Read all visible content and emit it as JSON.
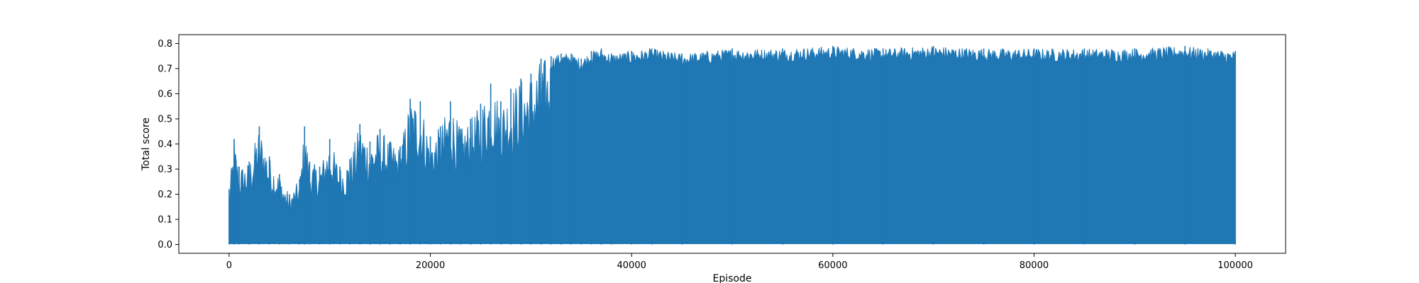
{
  "chart_data": {
    "type": "line",
    "title": "",
    "xlabel": "Episode",
    "ylabel": "Total score",
    "xlim": [
      -5000,
      105000
    ],
    "ylim": [
      -0.035,
      0.835
    ],
    "xticks": [
      0,
      20000,
      40000,
      60000,
      80000,
      100000
    ],
    "xtick_labels": [
      "0",
      "20000",
      "40000",
      "60000",
      "80000",
      "100000"
    ],
    "yticks": [
      0.0,
      0.1,
      0.2,
      0.3,
      0.4,
      0.5,
      0.6,
      0.7,
      0.8
    ],
    "ytick_labels": [
      "0.0",
      "0.1",
      "0.2",
      "0.3",
      "0.4",
      "0.5",
      "0.6",
      "0.7",
      "0.8"
    ],
    "grid": false,
    "legend": null,
    "series": [
      {
        "color": "#1f77b4",
        "description_min": "near 0.0 throughout",
        "x": [
          0,
          500,
          1000,
          2000,
          3000,
          4000,
          5000,
          6000,
          7000,
          7500,
          8000,
          9000,
          10000,
          11000,
          12000,
          13000,
          14000,
          15000,
          16000,
          17000,
          18000,
          19000,
          20000,
          21000,
          22000,
          23000,
          24000,
          25000,
          26000,
          27000,
          28000,
          29000,
          30000,
          31000,
          32000,
          33000,
          34000,
          35000,
          36000,
          37000,
          38000,
          40000,
          42000,
          45000,
          50000,
          55000,
          60000,
          65000,
          70000,
          75000,
          80000,
          85000,
          90000,
          95000,
          100000
        ],
        "upper": [
          0.22,
          0.42,
          0.31,
          0.33,
          0.47,
          0.35,
          0.28,
          0.2,
          0.26,
          0.47,
          0.33,
          0.31,
          0.42,
          0.31,
          0.34,
          0.48,
          0.41,
          0.46,
          0.41,
          0.39,
          0.58,
          0.57,
          0.43,
          0.47,
          0.57,
          0.46,
          0.5,
          0.56,
          0.64,
          0.57,
          0.62,
          0.66,
          0.68,
          0.74,
          0.75,
          0.76,
          0.76,
          0.74,
          0.77,
          0.78,
          0.76,
          0.77,
          0.78,
          0.76,
          0.78,
          0.78,
          0.79,
          0.78,
          0.79,
          0.78,
          0.78,
          0.78,
          0.78,
          0.79,
          0.77
        ],
        "lower": [
          0.0,
          0.0,
          0.0,
          0.0,
          0.0,
          0.0,
          0.0,
          0.0,
          0.0,
          0.0,
          0.0,
          0.0,
          0.0,
          0.0,
          0.0,
          0.0,
          0.0,
          0.0,
          0.0,
          0.0,
          0.0,
          0.0,
          0.0,
          0.0,
          0.0,
          0.0,
          0.0,
          0.0,
          0.0,
          0.0,
          0.0,
          0.0,
          0.0,
          0.0,
          0.0,
          0.0,
          0.0,
          0.0,
          0.0,
          0.0,
          0.0,
          0.0,
          0.0,
          0.0,
          0.0,
          0.0,
          0.0,
          0.0,
          0.0,
          0.0,
          0.0,
          0.0,
          0.0,
          0.0,
          0.0
        ]
      }
    ]
  }
}
